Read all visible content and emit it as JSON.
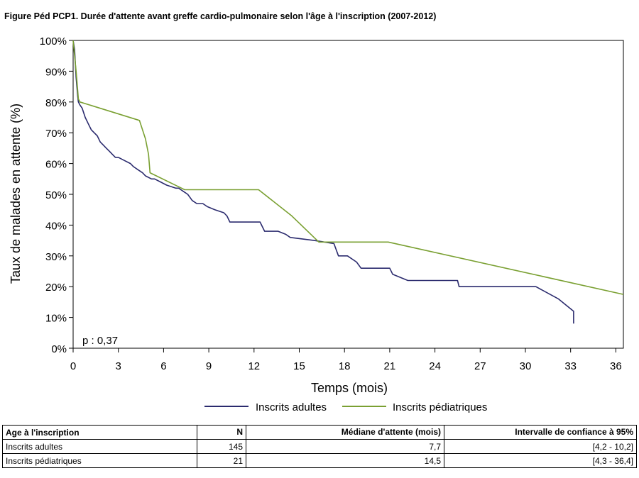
{
  "figure": {
    "title": "Figure Péd PCP1. Durée d'attente avant greffe cardio-pulmonaire selon l'âge à l'inscription (2007-2012)"
  },
  "chart_data": {
    "type": "line",
    "step": true,
    "xlabel": "Temps (mois)",
    "ylabel": "Taux de malades en attente (%)",
    "xlim": [
      0,
      36.5
    ],
    "ylim": [
      0,
      100
    ],
    "xticks": [
      0,
      3,
      6,
      9,
      12,
      15,
      18,
      21,
      24,
      27,
      30,
      33,
      36
    ],
    "yticks": [
      0,
      10,
      20,
      30,
      40,
      50,
      60,
      70,
      80,
      90,
      100
    ],
    "ytick_labels": [
      "0%",
      "10%",
      "20%",
      "30%",
      "40%",
      "50%",
      "60%",
      "70%",
      "80%",
      "90%",
      "100%"
    ],
    "annotation": "p : 0,37",
    "legend_position": "bottom",
    "grid": false,
    "series": [
      {
        "name": "Inscrits adultes",
        "color": "#2b2b6e",
        "x": [
          0,
          0.1,
          0.15,
          0.2,
          0.25,
          0.3,
          0.35,
          0.45,
          0.6,
          0.8,
          1.0,
          1.2,
          1.4,
          1.6,
          1.8,
          2.0,
          2.2,
          2.4,
          2.6,
          2.8,
          3.0,
          3.4,
          3.8,
          4.0,
          4.3,
          4.6,
          4.8,
          5.2,
          5.4,
          5.8,
          6.2,
          6.8,
          7.0,
          7.3,
          7.6,
          7.9,
          8.2,
          8.6,
          8.9,
          9.4,
          10.0,
          10.2,
          10.4,
          12.4,
          12.7,
          13.6,
          14.1,
          14.4,
          16.0,
          17.3,
          17.6,
          18.2,
          18.8,
          19.1,
          21.0,
          21.2,
          22.2,
          25.5,
          25.6,
          30.7,
          32.2,
          33.2,
          33.2
        ],
        "y": [
          100,
          97,
          92,
          88,
          85,
          82,
          80,
          79,
          78,
          75,
          73,
          71,
          70,
          69,
          67,
          66,
          65,
          64,
          63,
          62,
          62,
          61,
          60,
          59,
          58,
          57,
          56,
          55,
          55,
          54,
          53,
          52,
          52,
          51,
          50,
          48,
          47,
          47,
          46,
          45,
          44,
          43,
          41,
          41,
          38,
          38,
          37,
          36,
          35,
          34,
          30,
          30,
          28,
          26,
          26,
          24,
          22,
          22,
          20,
          20,
          16,
          12,
          8
        ]
      },
      {
        "name": "Inscrits pédiatriques",
        "color": "#7aa032",
        "x": [
          0,
          0.2,
          0.35,
          0.45,
          4.4,
          4.8,
          5.0,
          5.1,
          7.4,
          12.3,
          14.5,
          16.3,
          20.9,
          36.5
        ],
        "y": [
          100,
          90,
          81,
          80,
          74,
          68,
          63,
          57,
          51.5,
          51.5,
          43,
          34.5,
          34.5,
          17.5
        ]
      }
    ]
  },
  "stats_table": {
    "headers": {
      "group": "Age à l'inscription",
      "n": "N",
      "median": "Médiane d'attente (mois)",
      "ci": "Intervalle de confiance à 95%"
    },
    "rows": [
      {
        "group": "Inscrits adultes",
        "n": "145",
        "median": "7,7",
        "ci": "[4,2 - 10,2]"
      },
      {
        "group": "Inscrits pédiatriques",
        "n": "21",
        "median": "14,5",
        "ci": "[4,3 - 36,4]"
      }
    ]
  }
}
